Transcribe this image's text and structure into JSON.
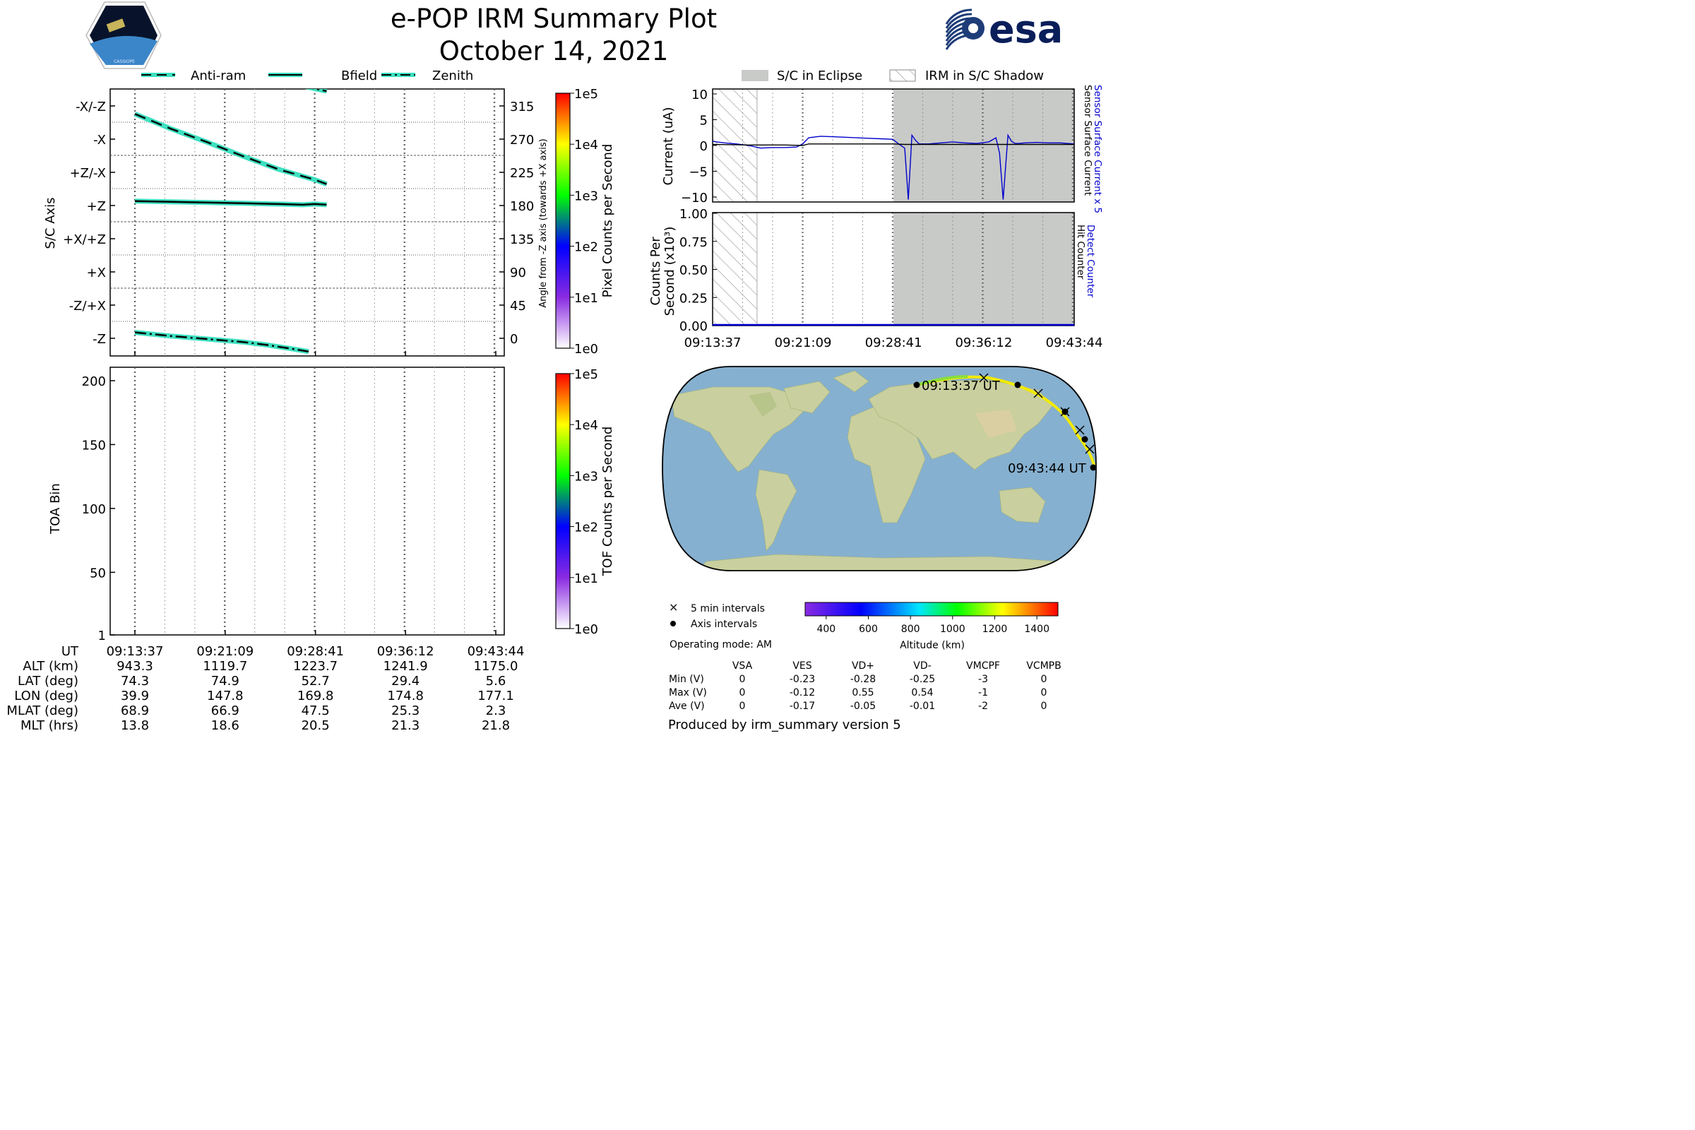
{
  "header": {
    "title": "e-POP IRM Summary Plot",
    "date": "October 14, 2021",
    "logo_left": "CASSIOPE",
    "logo_right": "esa"
  },
  "colors": {
    "trace_cyan": "#3de0c0",
    "eclipse_gray": "#c8cac8",
    "sensor_blue": "#0000cc",
    "track_yellow": "#f2ea00",
    "ocean": "#86b0cf",
    "land": "#c9cf9e"
  },
  "ticks_ut": [
    "09:13:37",
    "09:21:09",
    "09:28:41",
    "09:36:12",
    "09:43:44"
  ],
  "orbit_panel": {
    "legend": [
      "Anti-ram",
      "Bfield",
      "Zenith"
    ],
    "ylabel": "S/C Axis",
    "ylabel_right": "Angle from -Z axis (towards +X axis)",
    "axis_labels": [
      "-X/-Z",
      "-X",
      "+Z/-X",
      "+Z",
      "+X/+Z",
      "+X",
      "-Z/+X",
      "-Z"
    ],
    "angle_ticks": [
      "315",
      "270",
      "225",
      "180",
      "135",
      "90",
      "45",
      "0"
    ],
    "colorbar_label": "Pixel Counts per Second",
    "colorbar_ticks": [
      "1e5",
      "1e4",
      "1e3",
      "1e2",
      "1e1",
      "1e0"
    ]
  },
  "tof_panel": {
    "ylabel": "TOA Bin",
    "yticks": [
      "200",
      "150",
      "100",
      "50",
      "1"
    ],
    "colorbar_label": "TOF Counts per Second",
    "colorbar_ticks": [
      "1e5",
      "1e4",
      "1e3",
      "1e2",
      "1e1",
      "1e0"
    ]
  },
  "eph_table": {
    "labels": [
      "UT",
      "ALT (km)",
      "LAT (deg)",
      "LON (deg)",
      "MLAT (deg)",
      "MLT (hrs)"
    ],
    "rows": [
      [
        "943.3",
        "1119.7",
        "1223.7",
        "1241.9",
        "1175.0"
      ],
      [
        "74.3",
        "74.9",
        "52.7",
        "29.4",
        "5.6"
      ],
      [
        "39.9",
        "147.8",
        "169.8",
        "174.8",
        "177.1"
      ],
      [
        "68.9",
        "66.9",
        "47.5",
        "25.3",
        "2.3"
      ],
      [
        "13.8",
        "18.6",
        "20.5",
        "21.3",
        "21.8"
      ]
    ]
  },
  "current_panel": {
    "legend_eclipse": "S/C in Eclipse",
    "legend_shadow": "IRM in S/C Shadow",
    "ylabel": "Current (uA)",
    "yticks": [
      "10",
      "5",
      "0",
      "−5",
      "−10"
    ],
    "right_label_blue": "Sensor Surface Current x 5",
    "right_label_black": "Sensor Surface Current"
  },
  "counts_panel": {
    "ylabel_line1": "Counts Per",
    "ylabel_line2": "Second (x10³)",
    "yticks": [
      "1.00",
      "0.75",
      "0.50",
      "0.25",
      "0.00"
    ],
    "right_label_blue": "Detect Counter",
    "right_label_black": "Hit Counter"
  },
  "map_panel": {
    "start_label": "09:13:37 UT",
    "end_label": "09:43:44 UT",
    "legend_5min": "5 min intervals",
    "legend_axis": "Axis intervals",
    "altitude_ticks": [
      "400",
      "600",
      "800",
      "1000",
      "1200",
      "1400"
    ],
    "altitude_label": "Altitude (km)",
    "operating_mode": "Operating mode: AM"
  },
  "voltage_table": {
    "headers": [
      "VSA",
      "VES",
      "VD+",
      "VD-",
      "VMCPF",
      "VCMPB"
    ],
    "rows": [
      {
        "label": "Min (V)",
        "values": [
          "0",
          "-0.23",
          "-0.28",
          "-0.25",
          "-3",
          "0"
        ]
      },
      {
        "label": "Max (V)",
        "values": [
          "0",
          "-0.12",
          "0.55",
          "0.54",
          "-1",
          "0"
        ]
      },
      {
        "label": "Ave (V)",
        "values": [
          "0",
          "-0.17",
          "-0.05",
          "-0.01",
          "-2",
          "0"
        ]
      }
    ]
  },
  "footer": "Produced by irm_summary version 5",
  "chart_data": [
    {
      "type": "line",
      "title": "",
      "xlabel": "UT",
      "ylabel": "Angle from -Z axis (towards +X axis)",
      "ylim": [
        -20,
        340
      ],
      "x_unit": "minutes after 09:13:37",
      "series": [
        {
          "name": "Anti-ram",
          "style": "dashed",
          "x": [
            0,
            3,
            6,
            9,
            12,
            15,
            16
          ],
          "y": [
            305,
            285,
            267,
            248,
            230,
            216,
            210
          ]
        },
        {
          "name": "Bfield",
          "style": "solid",
          "x": [
            0,
            3,
            6,
            9,
            12,
            14,
            15,
            16
          ],
          "y": [
            187,
            186,
            185,
            184,
            183,
            182,
            183,
            182
          ]
        },
        {
          "name": "Zenith",
          "style": "dashdot",
          "x": [
            0,
            3,
            6,
            9,
            11,
            13,
            14.5
          ],
          "y": [
            9,
            4,
            0,
            -4,
            -8,
            -13,
            -17
          ]
        },
        {
          "name": "Zenith",
          "style": "dashdot",
          "x": [
            14,
            16
          ],
          "y": [
            343,
            336
          ]
        }
      ]
    },
    {
      "type": "heatmap",
      "xlabel": "UT",
      "ylabel": "TOA Bin",
      "ylim": [
        1,
        210
      ],
      "values": [],
      "colorbar": "TOF Counts per Second"
    },
    {
      "type": "line",
      "ylabel": "Current (uA)",
      "ylim": [
        -11,
        11
      ],
      "x_unit": "minutes after 09:13:37",
      "eclipse_start_min": 15.07,
      "shadow_interval_min": [
        0,
        3.7
      ],
      "series": [
        {
          "name": "Sensor Surface Current x 5",
          "color": "blue",
          "x": [
            0,
            1,
            2,
            3,
            4,
            5,
            6,
            7,
            7.5,
            8,
            9,
            10,
            11,
            12,
            13,
            14,
            15,
            15.5,
            16,
            16.3,
            16.6,
            16.9,
            17.2,
            17.6,
            18,
            19,
            20,
            21,
            22,
            23,
            23.6,
            23.9,
            24.2,
            24.6,
            24.9,
            25.2,
            25.5,
            26,
            27,
            28,
            29,
            30.1
          ],
          "y": [
            0.8,
            0.5,
            0.3,
            0,
            -0.5,
            -0.4,
            -0.4,
            -0.3,
            0.3,
            1.5,
            1.8,
            1.7,
            1.6,
            1.5,
            1.4,
            1.3,
            1.2,
            0.3,
            -0.5,
            -10.5,
            2.0,
            1.0,
            0.3,
            0.3,
            0.3,
            0.5,
            0.7,
            0.5,
            0.4,
            0.7,
            1.5,
            -1.5,
            -10.5,
            2.0,
            0.8,
            0.4,
            0.4,
            0.5,
            0.6,
            0.5,
            0.5,
            0.3
          ]
        },
        {
          "name": "Sensor Surface Current",
          "color": "black",
          "x": [
            0,
            3,
            6,
            7.5,
            8,
            12,
            15,
            16,
            20,
            24,
            28,
            30.1
          ],
          "y": [
            0.2,
            0.1,
            0.1,
            0,
            0.3,
            0.3,
            0.3,
            0.2,
            0.2,
            0.2,
            0.2,
            0.2
          ]
        }
      ]
    },
    {
      "type": "line",
      "ylabel": "Counts Per Second (x10³)",
      "ylim": [
        0,
        1
      ],
      "series": [
        {
          "name": "Detect Counter",
          "color": "blue",
          "x": [
            0,
            30.1
          ],
          "y": [
            0,
            0
          ]
        },
        {
          "name": "Hit Counter",
          "color": "black",
          "x": [
            0,
            30.1
          ],
          "y": [
            0,
            0
          ]
        }
      ]
    }
  ]
}
